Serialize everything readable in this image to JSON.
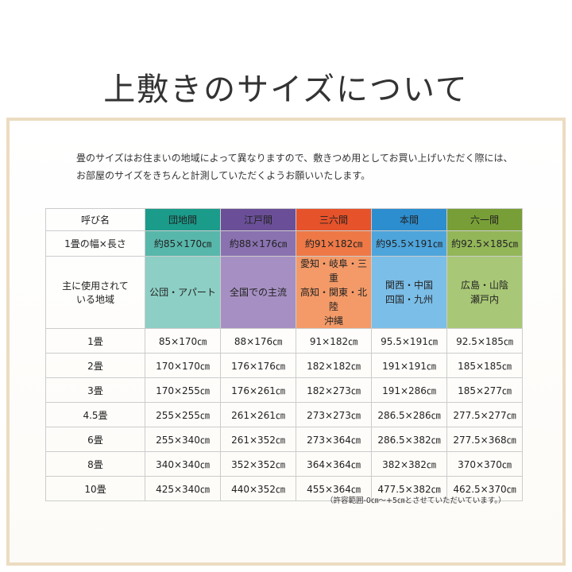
{
  "header": {
    "title": "上敷きのサイズについて"
  },
  "intro": [
    "畳のサイズはお住まいの地域によって異なりますので、敷きつめ用としてお買い上げいただく際には、",
    "お部屋のサイズをきちんと計測していただくようお願いいたします。"
  ],
  "table": {
    "row_labels": {
      "name": "呼び名",
      "size": "1畳の幅×長さ",
      "region": [
        "主に使用されて",
        "いる地域"
      ]
    },
    "columns": [
      {
        "name": "団地間",
        "size": "約85×170㎝",
        "region": [
          "公団・アパート"
        ]
      },
      {
        "name": "江戸間",
        "size": "約88×176㎝",
        "region": [
          "全国での主流"
        ]
      },
      {
        "name": "三六間",
        "size": "約91×182㎝",
        "region": [
          "愛知・岐阜・三重",
          "高知・関東・北陸",
          "沖縄"
        ]
      },
      {
        "name": "本間",
        "size": "約95.5×191㎝",
        "region": [
          "関西・中国",
          "四国・九州"
        ]
      },
      {
        "name": "六一間",
        "size": "約92.5×185㎝",
        "region": [
          "広島・山陰",
          "瀬戸内"
        ]
      }
    ],
    "rows": [
      {
        "label": "1畳",
        "cells": [
          "85×170㎝",
          "88×176㎝",
          "91×182㎝",
          "95.5×191㎝",
          "92.5×185㎝"
        ]
      },
      {
        "label": "2畳",
        "cells": [
          "170×170㎝",
          "176×176㎝",
          "182×182㎝",
          "191×191㎝",
          "185×185㎝"
        ]
      },
      {
        "label": "3畳",
        "cells": [
          "170×255㎝",
          "176×261㎝",
          "182×273㎝",
          "191×286㎝",
          "185×277㎝"
        ]
      },
      {
        "label": "4.5畳",
        "cells": [
          "255×255㎝",
          "261×261㎝",
          "273×273㎝",
          "286.5×286㎝",
          "277.5×277㎝"
        ]
      },
      {
        "label": "6畳",
        "cells": [
          "255×340㎝",
          "261×352㎝",
          "273×364㎝",
          "286.5×382㎝",
          "277.5×368㎝"
        ]
      },
      {
        "label": "8畳",
        "cells": [
          "340×340㎝",
          "352×352㎝",
          "364×364㎝",
          "382×382㎝",
          "370×370㎝"
        ]
      },
      {
        "label": "10畳",
        "cells": [
          "425×340㎝",
          "440×352㎝",
          "455×364㎝",
          "477.5×382㎝",
          "462.5×370㎝"
        ]
      }
    ]
  },
  "note": "（許容範囲-0㎝～+5㎝とさせていただいています。）"
}
